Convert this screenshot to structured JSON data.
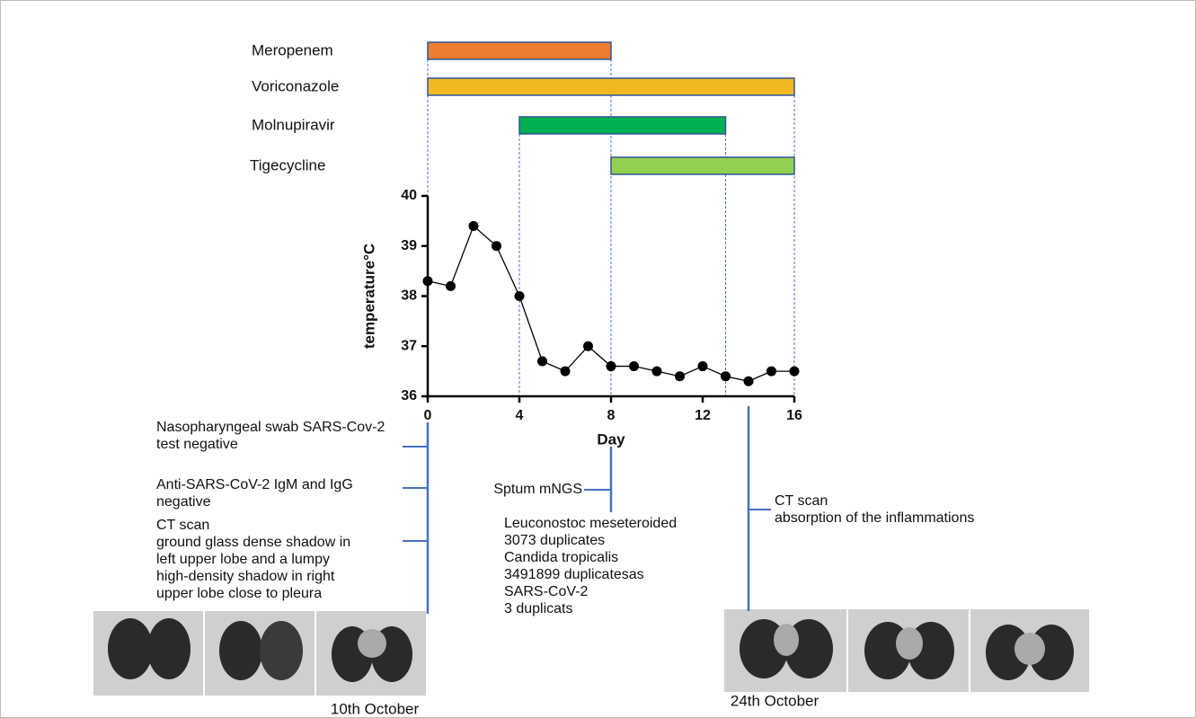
{
  "chart_data": {
    "type": "line",
    "xlabel": "Day",
    "ylabel": "temperature°C",
    "x": [
      0,
      1,
      2,
      3,
      4,
      5,
      6,
      7,
      8,
      9,
      10,
      11,
      12,
      13,
      14,
      15,
      16
    ],
    "values": [
      38.3,
      38.2,
      39.4,
      39.0,
      38.0,
      36.7,
      36.5,
      37.0,
      36.6,
      36.6,
      36.5,
      36.4,
      36.6,
      36.4,
      36.3,
      36.5,
      36.5
    ],
    "color": "#000000",
    "xlim": [
      0,
      16
    ],
    "xticks": [
      0,
      4,
      8,
      12,
      16
    ],
    "ylim": [
      36,
      40
    ],
    "yticks": [
      36,
      37,
      38,
      39,
      40
    ],
    "drugs": [
      {
        "name": "Meropenem",
        "start": 0,
        "end": 8,
        "color": "#ed7d31"
      },
      {
        "name": "Voriconazole",
        "start": 0,
        "end": 16,
        "color": "#f2b824"
      },
      {
        "name": "Molnupiravir",
        "start": 4,
        "end": 13,
        "color": "#00b050"
      },
      {
        "name": "Tigecycline",
        "start": 8,
        "end": 16,
        "color": "#92d050"
      }
    ],
    "events": [
      {
        "day": 0,
        "date": "10th October",
        "items": [
          {
            "lines": [
              "Nasopharyngeal swab SARS-Cov-2",
              "test  negative"
            ]
          },
          {
            "lines": [
              "Anti-SARS-CoV-2 IgM and IgG",
              "negative"
            ]
          },
          {
            "lines": [
              "CT scan",
              "ground glass dense shadow in",
              "left upper lobe and a lumpy",
              "high-density shadow in right",
              "upper lobe close to pleura"
            ]
          }
        ]
      },
      {
        "day": 8,
        "items": [
          {
            "lines": [
              "Sptum mNGS"
            ]
          },
          {
            "lines": [
              "Leuconostoc meseteroided",
              "3073 duplicates",
              "Candida tropicalis",
              "3491899 duplicatesas",
              "SARS-CoV-2",
              "3 duplicats"
            ]
          }
        ]
      },
      {
        "day": 14,
        "date": "24th October",
        "items": [
          {
            "lines": [
              "CT scan",
              "absorption of the inflammations"
            ]
          }
        ]
      }
    ]
  }
}
